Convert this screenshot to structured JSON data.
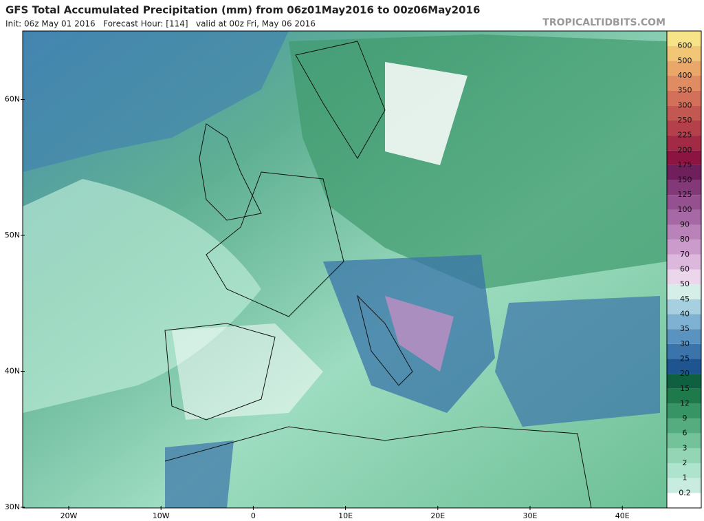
{
  "header": {
    "title": "GFS Total Accumulated Precipitation (mm) from 06z01May2016 to 00z06May2016",
    "subtitle": "Init: 06z May 01 2016   Forecast Hour: [114]   valid at 00z Fri, May 06 2016",
    "watermark": "TROPICALTIDBITS.COM"
  },
  "map": {
    "lat_labels": [
      "30N",
      "40N",
      "50N",
      "60N"
    ],
    "lon_labels": [
      "20W",
      "10W",
      "0",
      "10E",
      "20E",
      "30E",
      "40E"
    ]
  },
  "colorbar": {
    "levels": [
      {
        "label": "0.2",
        "color": "#c8ede0"
      },
      {
        "label": "1",
        "color": "#aee3cd"
      },
      {
        "label": "2",
        "color": "#93d5b5"
      },
      {
        "label": "3",
        "color": "#74c29a"
      },
      {
        "label": "6",
        "color": "#55ad7f"
      },
      {
        "label": "9",
        "color": "#379464"
      },
      {
        "label": "12",
        "color": "#1f7a4b"
      },
      {
        "label": "15",
        "color": "#0f6040"
      },
      {
        "label": "20",
        "color": "#1e5590"
      },
      {
        "label": "25",
        "color": "#3a74aa"
      },
      {
        "label": "30",
        "color": "#5a93c0"
      },
      {
        "label": "35",
        "color": "#7fb1d2"
      },
      {
        "label": "40",
        "color": "#a6d0df"
      },
      {
        "label": "45",
        "color": "#d5eee8"
      },
      {
        "label": "50",
        "color": "#ecd6ec"
      },
      {
        "label": "60",
        "color": "#dcb8dc"
      },
      {
        "label": "70",
        "color": "#cb9ccb"
      },
      {
        "label": "80",
        "color": "#b982b9"
      },
      {
        "label": "90",
        "color": "#a768a6"
      },
      {
        "label": "100",
        "color": "#955090"
      },
      {
        "label": "125",
        "color": "#833878"
      },
      {
        "label": "150",
        "color": "#6e1f5c"
      },
      {
        "label": "175",
        "color": "#8c1440"
      },
      {
        "label": "200",
        "color": "#a32a44"
      },
      {
        "label": "225",
        "color": "#b3404a"
      },
      {
        "label": "250",
        "color": "#c35852"
      },
      {
        "label": "300",
        "color": "#d2705a"
      },
      {
        "label": "350",
        "color": "#e08c62"
      },
      {
        "label": "400",
        "color": "#e9a86a"
      },
      {
        "label": "500",
        "color": "#f1c676"
      },
      {
        "label": "600",
        "color": "#f8e488"
      }
    ]
  }
}
